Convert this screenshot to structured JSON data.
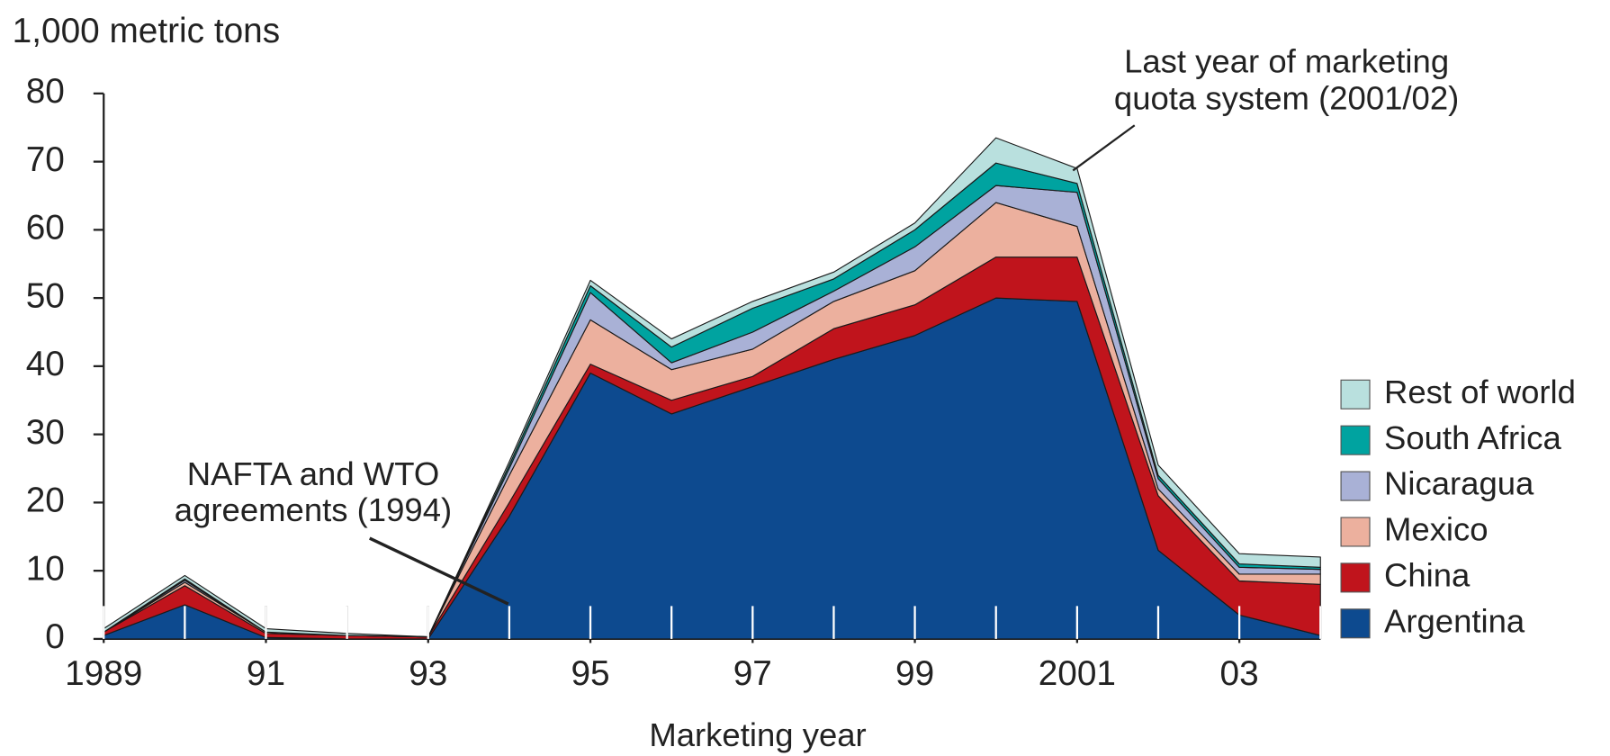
{
  "chart_data": {
    "type": "stacked_area",
    "y_label": "1,000 metric tons",
    "x_label": "Marketing year",
    "x": [
      1989,
      1990,
      1991,
      1992,
      1993,
      1994,
      1995,
      1996,
      1997,
      1998,
      1999,
      2000,
      2001,
      2002,
      2003,
      2004
    ],
    "xlim": [
      1989,
      2004
    ],
    "xticks": [
      1989,
      {
        "value": 1991,
        "label": "91"
      },
      {
        "value": 1993,
        "label": "93"
      },
      {
        "value": 1995,
        "label": "95"
      },
      {
        "value": 1997,
        "label": "97"
      },
      {
        "value": 1999,
        "label": "99"
      },
      2001,
      {
        "value": 2003,
        "label": "03"
      }
    ],
    "ylim": [
      0,
      80
    ],
    "yticks": [
      0,
      10,
      20,
      30,
      40,
      50,
      60,
      70,
      80
    ],
    "series": [
      {
        "name": "Argentina",
        "color": "#0d4a8f",
        "values": [
          0.5,
          5,
          0.2,
          0,
          0,
          18,
          39,
          33,
          37,
          41,
          44.5,
          50,
          49.5,
          13,
          3.5,
          0.5
        ]
      },
      {
        "name": "China",
        "color": "#c0141c",
        "values": [
          0.5,
          2.8,
          0.6,
          0.5,
          0.3,
          2,
          1.3,
          2,
          1.5,
          4.5,
          4.5,
          6,
          6.5,
          8,
          5,
          7.5
        ]
      },
      {
        "name": "Mexico",
        "color": "#ecb09e",
        "values": [
          0,
          0.5,
          0.2,
          0,
          0,
          4,
          6.5,
          4.5,
          4,
          4,
          5,
          8,
          4.5,
          1,
          1,
          1.5
        ]
      },
      {
        "name": "Nicaragua",
        "color": "#a9b1d6",
        "values": [
          0,
          0.3,
          0,
          0,
          0,
          1,
          4,
          1,
          2.5,
          1.5,
          3.5,
          2.5,
          5,
          1.5,
          1,
          0.7
        ]
      },
      {
        "name": "South Africa",
        "color": "#00a3a0",
        "values": [
          0,
          0.2,
          0,
          0,
          0,
          0.5,
          1,
          2.3,
          3.5,
          1.8,
          2.5,
          3.3,
          1.3,
          0.5,
          0.5,
          0.3
        ]
      },
      {
        "name": "Rest of world",
        "color": "#b9e0de",
        "values": [
          0.5,
          0.5,
          0.5,
          0.3,
          0,
          0.5,
          0.8,
          1.2,
          1,
          1,
          1,
          3.7,
          2.2,
          1.5,
          1.5,
          1.5
        ]
      }
    ],
    "annotations": [
      {
        "text": [
          "NAFTA and WTO",
          "agreements (1994)"
        ]
      },
      {
        "text": [
          "Last year of marketing",
          "quota system (2001/02)"
        ]
      }
    ]
  }
}
